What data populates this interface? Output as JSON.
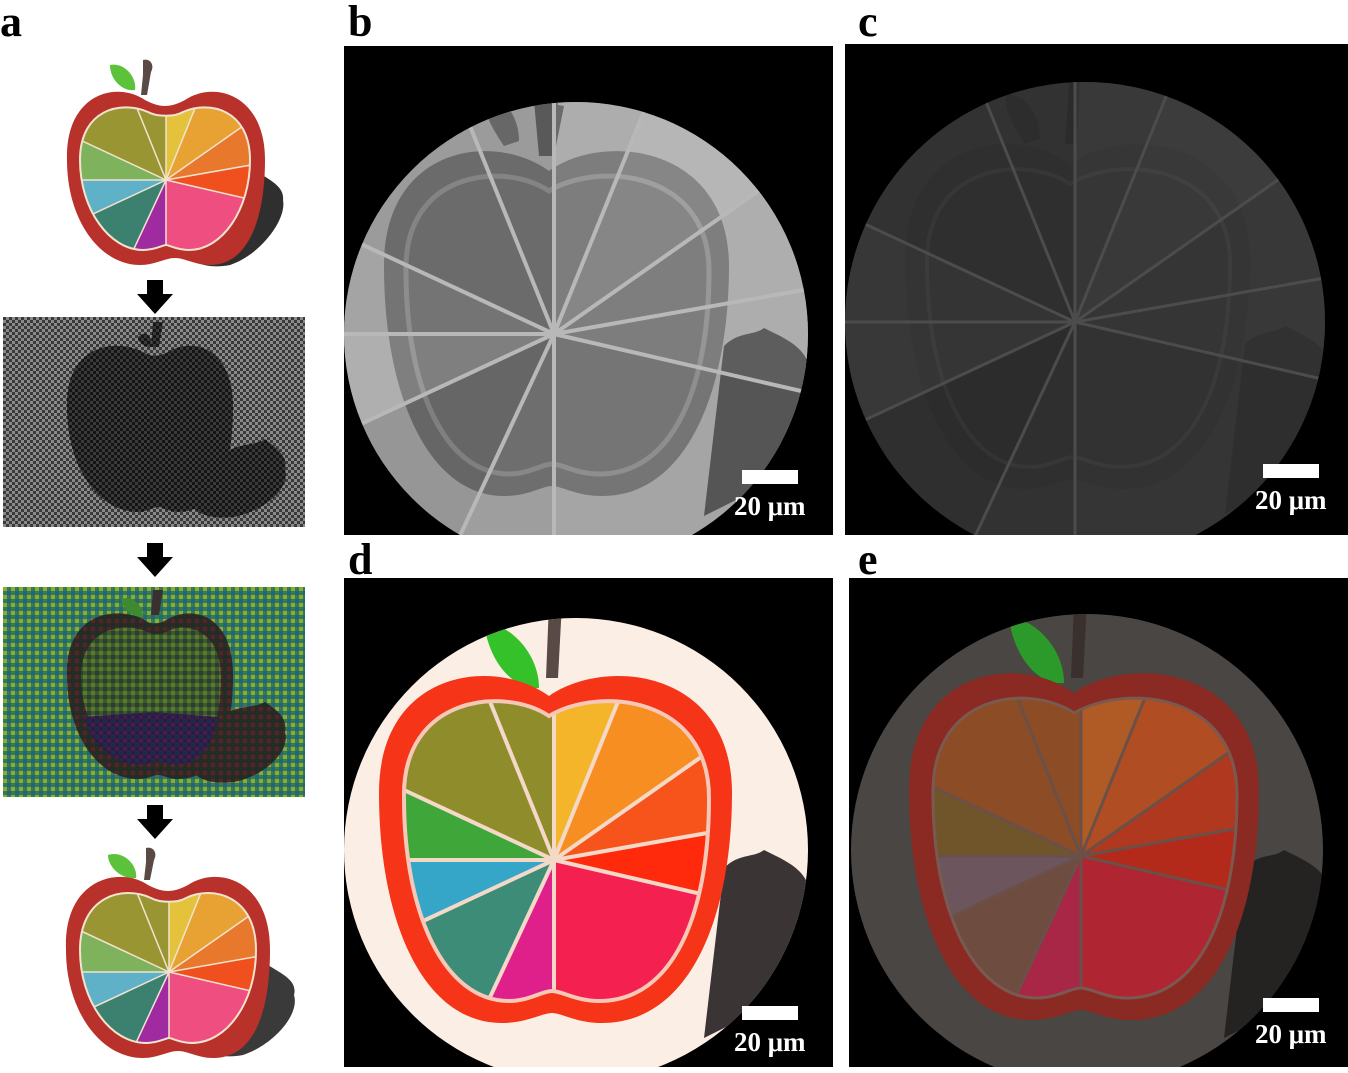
{
  "panel_labels": {
    "a": "a",
    "b": "b",
    "c": "c",
    "d": "d",
    "e": "e"
  },
  "scale_bars": {
    "b": "20 μm",
    "c": "20 μm",
    "d": "20 μm",
    "e": "20 μm"
  },
  "colors": {
    "apple_red": "#b8312a",
    "leaf_green": "#5cc23a",
    "stem_brown": "#5a4a46",
    "slices": [
      "#7fb25c",
      "#9a9533",
      "#e4c23c",
      "#e8a234",
      "#e8782c",
      "#f0501e",
      "#ef4e80",
      "#a02aa0",
      "#3c8070",
      "#5fb1c8"
    ],
    "slices_d": [
      "#3fa73a",
      "#8f8c2c",
      "#f5b52a",
      "#f68e22",
      "#f6541b",
      "#ff2a0c",
      "#f42050",
      "#e0208a",
      "#3c8c78",
      "#35a6c8"
    ]
  }
}
